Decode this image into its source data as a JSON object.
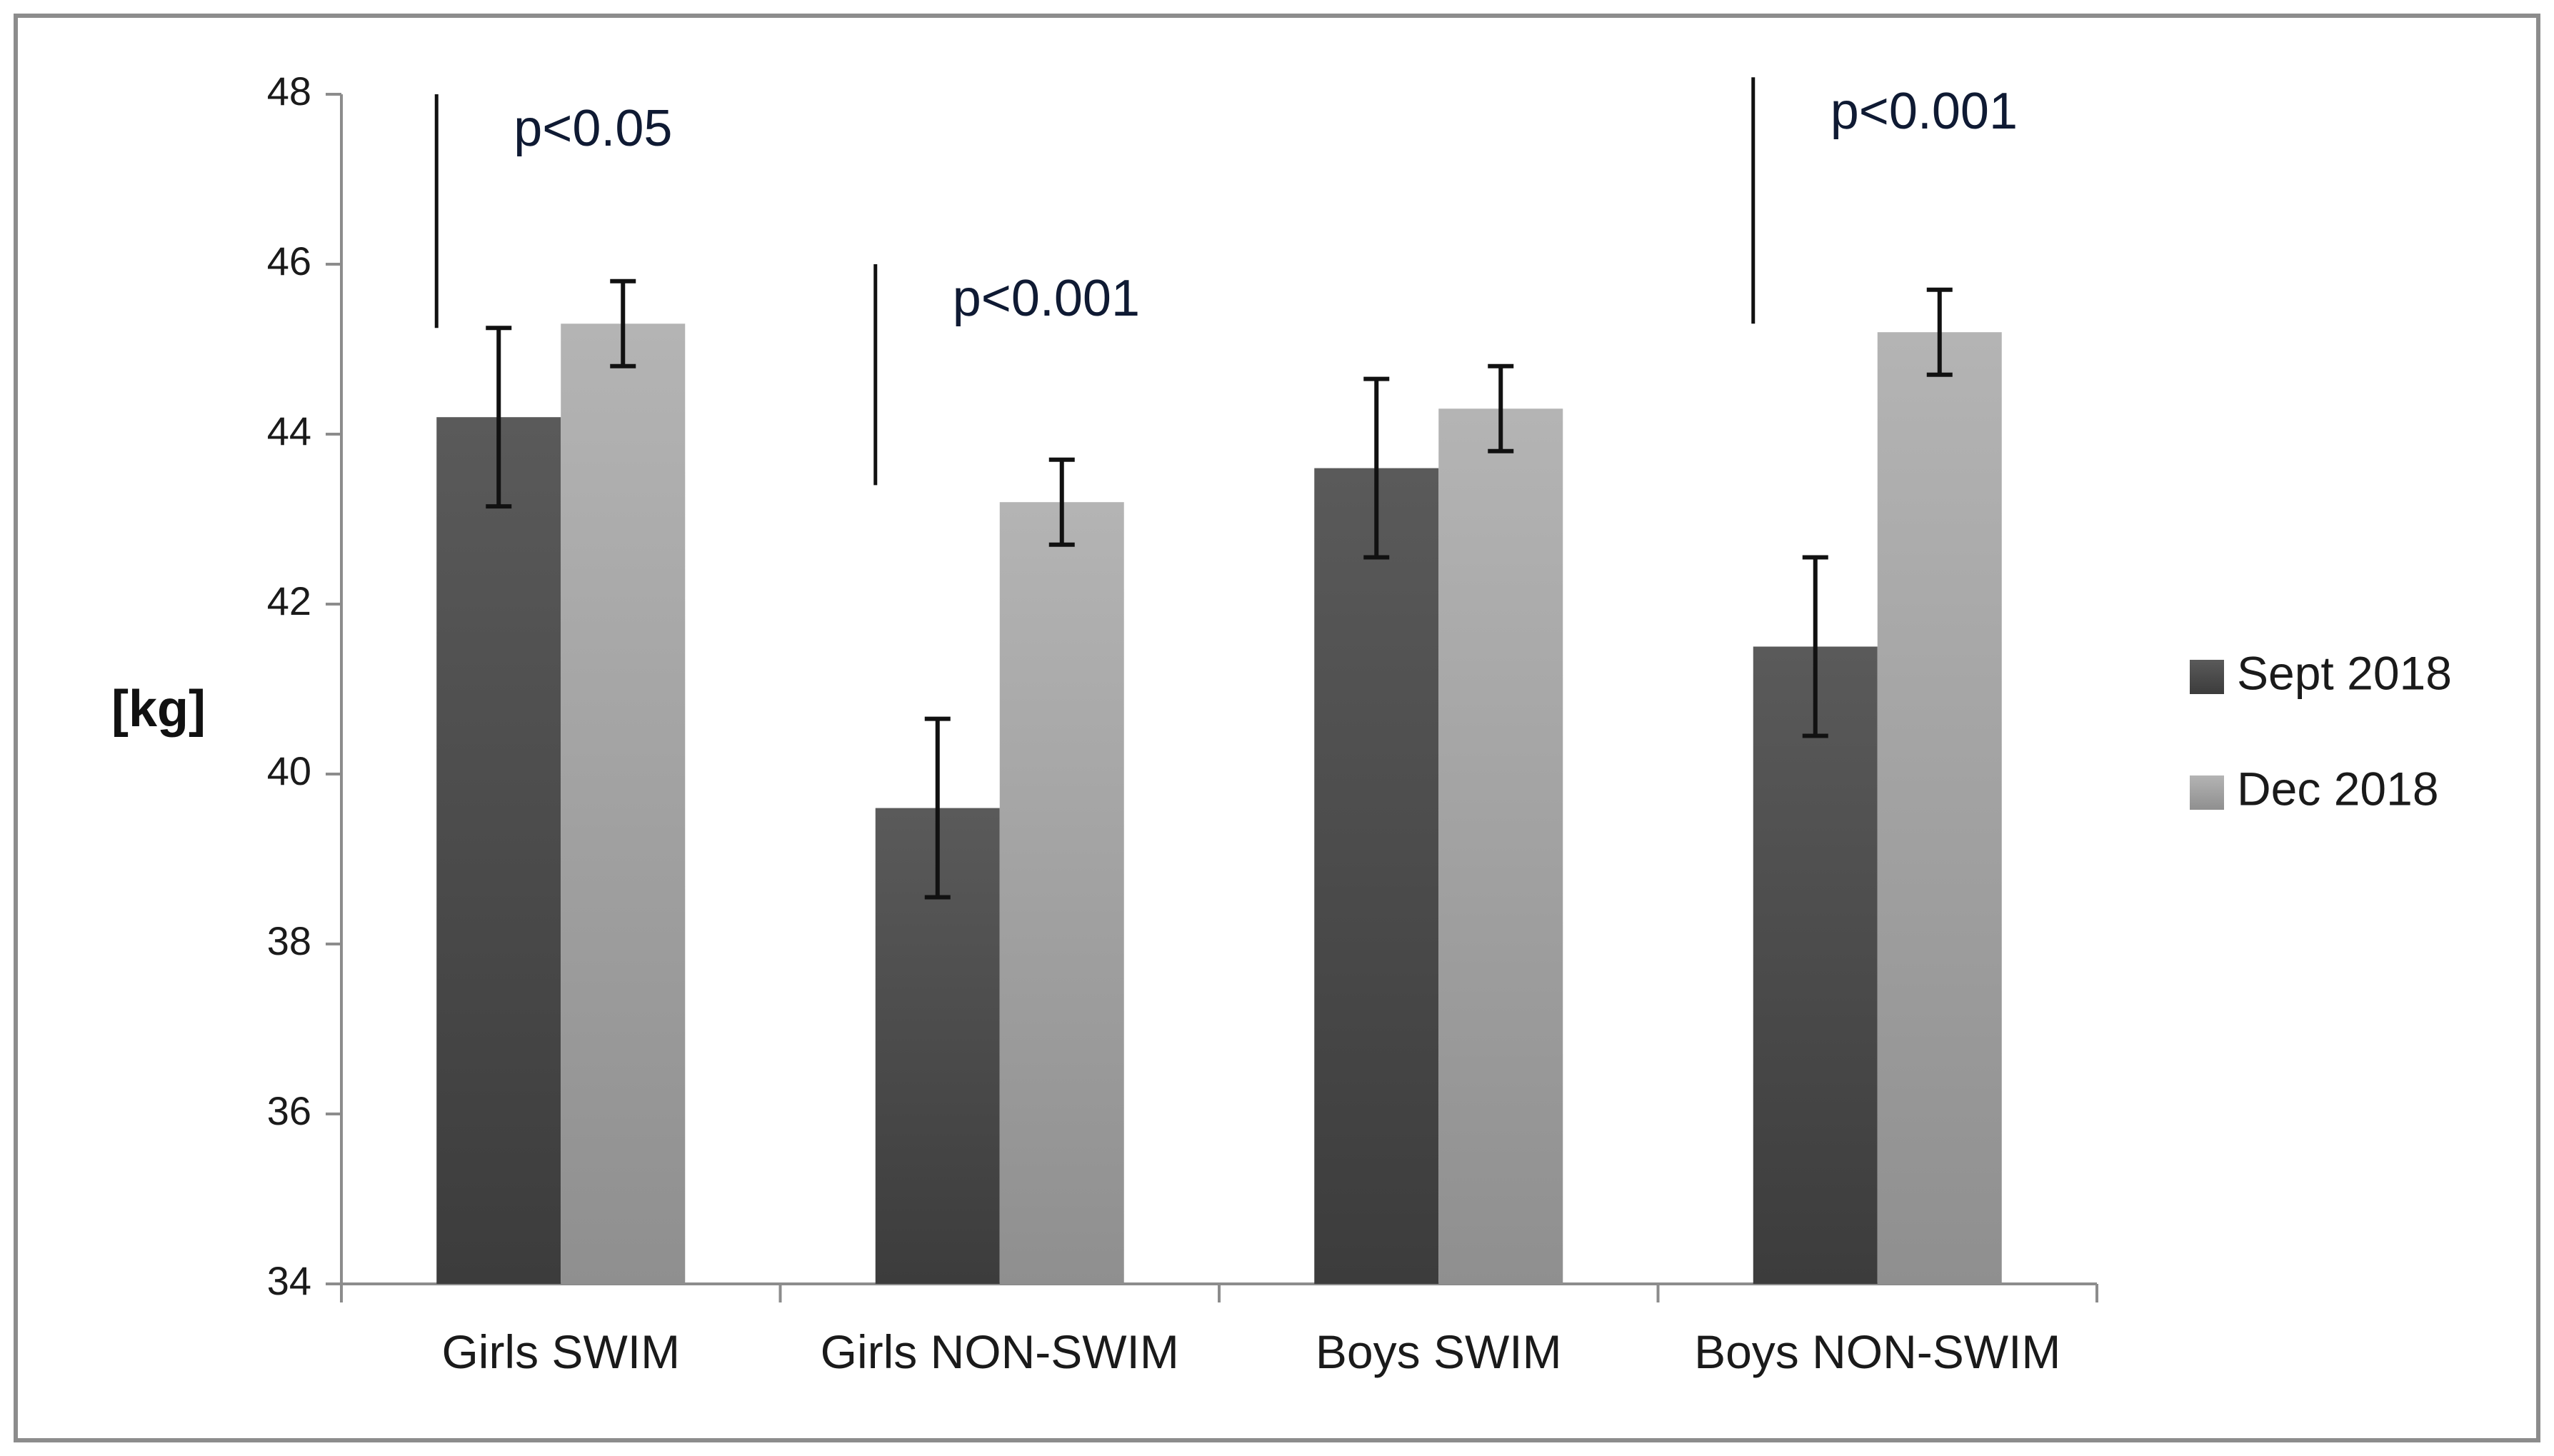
{
  "chart_data": {
    "type": "bar",
    "title": "",
    "xlabel": "",
    "ylabel": "[kg]",
    "ylim": [
      34,
      48
    ],
    "yticks": [
      34,
      36,
      38,
      40,
      42,
      44,
      46,
      48
    ],
    "categories": [
      "Girls SWIM",
      "Girls NON-SWIM",
      "Boys SWIM",
      "Boys NON-SWIM"
    ],
    "series": [
      {
        "name": "Sept 2018",
        "color": "#4a4a4a",
        "values": [
          44.2,
          39.6,
          43.6,
          41.5
        ],
        "error": [
          1.05,
          1.05,
          1.05,
          1.05
        ]
      },
      {
        "name": "Dec 2018",
        "color": "#a6a6a6",
        "values": [
          45.3,
          43.2,
          44.3,
          45.2
        ],
        "error": [
          0.5,
          0.5,
          0.5,
          0.5
        ]
      }
    ],
    "annotations": [
      {
        "category_index": 0,
        "text": "p<0.05",
        "line_from": 45.25,
        "line_to": 48.0
      },
      {
        "category_index": 1,
        "text": "p<0.001",
        "line_from": 43.4,
        "line_to": 46.0
      },
      {
        "category_index": 3,
        "text": "p<0.001",
        "line_from": 45.3,
        "line_to": 48.2
      }
    ],
    "legend_position": "right",
    "grid": false
  }
}
